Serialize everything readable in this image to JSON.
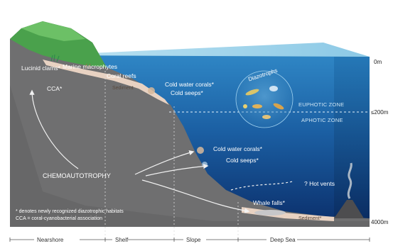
{
  "diagram": {
    "habitats": {
      "lucinid": "Lucinid clams*",
      "marine_macrophytes": "Marine macrophytes",
      "coral_reefs": "Coral reefs",
      "cca": "CCA*",
      "sediment_shelf": "Sediment",
      "cold_corals_1": "Cold water corals*",
      "cold_seeps_1": "Cold seeps*",
      "diazotrophs": "Diazotrophs",
      "cold_corals_2": "Cold water corals*",
      "cold_seeps_2": "Cold seeps*",
      "hot_vents": "? Hot vents",
      "whale_falls": "Whale falls*",
      "sediment_deep": "Sediment*"
    },
    "process": "CHEMOAUTOTROPHY",
    "zones": {
      "euphotic": "EUPHOTIC ZONE",
      "aphotic": "APHOTIC ZONE"
    },
    "depths": {
      "surface": "0m",
      "mid": "≤200m",
      "deep": "4000m"
    },
    "regions": {
      "nearshore": "Nearshore",
      "shelf": "Shelf",
      "slope": "Slope",
      "deep_sea": "Deep Sea"
    },
    "notes": {
      "line1": "* denotes newly recognized diazotrophic habitats",
      "line2": "CCA = coral-cyanobacterial association"
    }
  },
  "colors": {
    "ocean_top": "#2f86c5",
    "ocean_bottom": "#0b2f6b",
    "seafloor": "#6f6f70",
    "land": "#4aa14c",
    "sediment": "#e8d2c2"
  }
}
